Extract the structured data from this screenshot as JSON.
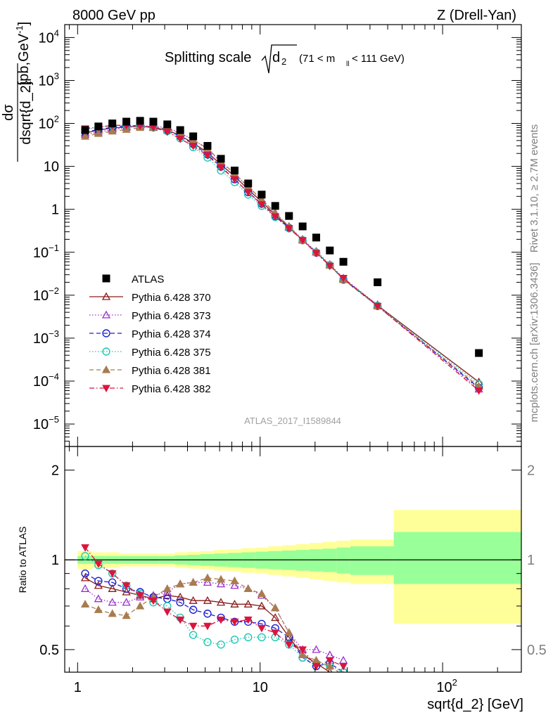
{
  "header": {
    "left": "8000 GeV pp",
    "right": "Z (Drell-Yan)"
  },
  "side_labels": {
    "rivet": "Rivet 3.1.10, ≥ 2.7M events",
    "mcplots": "mcplots.cern.ch [arXiv:1306.3436]"
  },
  "chart_data": [
    {
      "type": "scatter",
      "title_main": "Splitting scale",
      "title_sqrt": "d",
      "title_sqrt_sub": "2",
      "title_range_pre": "(71 < m",
      "title_range_sub": "ll",
      "title_range_post": " < 111 GeV)",
      "ylabel_num": "dσ",
      "ylabel_den": "dsqrt{d_2}",
      "ylabel_unit": "[pb,GeV",
      "ylabel_unit_sup": "-1",
      "ylabel_unit_end": "]",
      "watermark": "ATLAS_2017_I1589844",
      "x_scale": "log",
      "y_scale": "log",
      "xlim": [
        0.85,
        270
      ],
      "ylim": [
        3e-06,
        20000
      ],
      "x_ticks": [
        {
          "v": 1,
          "label": "1"
        },
        {
          "v": 10,
          "label": "10"
        },
        {
          "v": 100,
          "label": "10",
          "sup": "2"
        }
      ],
      "y_ticks": [
        {
          "v": 1e-05,
          "label": "10",
          "sup": "−5"
        },
        {
          "v": 0.0001,
          "label": "10",
          "sup": "−4"
        },
        {
          "v": 0.001,
          "label": "10",
          "sup": "−3"
        },
        {
          "v": 0.01,
          "label": "10",
          "sup": "−2"
        },
        {
          "v": 0.1,
          "label": "10",
          "sup": "−1"
        },
        {
          "v": 1,
          "label": "1"
        },
        {
          "v": 10,
          "label": "10"
        },
        {
          "v": 100,
          "label": "10",
          "sup": "2"
        },
        {
          "v": 1000,
          "label": "10",
          "sup": "3"
        },
        {
          "v": 10000,
          "label": "10",
          "sup": "4"
        }
      ],
      "legend_position": "lower-left",
      "series": [
        {
          "name": "ATLAS",
          "color": "#000000",
          "marker": "square-filled",
          "line": "none",
          "x": [
            1.1,
            1.3,
            1.55,
            1.85,
            2.2,
            2.6,
            3.1,
            3.65,
            4.3,
            5.15,
            6.1,
            7.25,
            8.6,
            10.2,
            12.1,
            14.4,
            17.1,
            20.3,
            24.1,
            28.6,
            44,
            158
          ],
          "y": [
            70,
            85,
            100,
            110,
            115,
            110,
            95,
            70,
            50,
            30,
            15,
            8,
            4,
            2.2,
            1.2,
            0.7,
            0.4,
            0.22,
            0.11,
            0.06,
            0.02,
            0.00045
          ]
        },
        {
          "name": "Pythia 6.428 370",
          "color": "#8b1a1a",
          "marker": "triangle-up-open",
          "line": "solid",
          "x": [
            1.1,
            1.3,
            1.55,
            1.85,
            2.2,
            2.6,
            3.1,
            3.65,
            4.3,
            5.15,
            6.1,
            7.25,
            8.6,
            10.2,
            12.1,
            14.4,
            17.1,
            20.3,
            24.1,
            28.6,
            44,
            158
          ],
          "y": [
            60,
            70,
            78,
            82,
            86,
            80,
            70,
            52,
            35,
            21,
            11,
            5.9,
            2.9,
            1.5,
            0.75,
            0.38,
            0.19,
            0.1,
            0.05,
            0.024,
            0.0058,
            9.5e-05
          ]
        },
        {
          "name": "Pythia 6.428 373",
          "color": "#9932cc",
          "marker": "triangle-up-open",
          "line": "dotted",
          "x": [
            1.1,
            1.3,
            1.55,
            1.85,
            2.2,
            2.6,
            3.1,
            3.65,
            4.3,
            5.15,
            6.1,
            7.25,
            8.6,
            10.2,
            12.1,
            14.4,
            17.1,
            20.3,
            24.1,
            28.6,
            44,
            158
          ],
          "y": [
            55,
            63,
            72,
            80,
            88,
            86,
            80,
            60,
            42,
            25,
            12.5,
            6.7,
            3.3,
            1.7,
            0.83,
            0.4,
            0.2,
            0.105,
            0.052,
            0.025,
            0.006,
            6.5e-05
          ]
        },
        {
          "name": "Pythia 6.428 374",
          "color": "#1e1ed2",
          "marker": "circle-open",
          "line": "dashed",
          "x": [
            1.1,
            1.3,
            1.55,
            1.85,
            2.2,
            2.6,
            3.1,
            3.65,
            4.3,
            5.15,
            6.1,
            7.25,
            8.6,
            10.2,
            12.1,
            14.4,
            17.1,
            20.3,
            24.1,
            28.6,
            44,
            158
          ],
          "y": [
            63,
            72,
            82,
            87,
            90,
            82,
            70,
            50,
            33,
            19,
            9.8,
            5,
            2.5,
            1.35,
            0.7,
            0.37,
            0.19,
            0.098,
            0.05,
            0.023,
            0.0056,
            7e-05
          ]
        },
        {
          "name": "Pythia 6.428 375",
          "color": "#1ec8b4",
          "marker": "circle-open",
          "line": "dotted",
          "x": [
            1.1,
            1.3,
            1.55,
            1.85,
            2.2,
            2.6,
            3.1,
            3.65,
            4.3,
            5.15,
            6.1,
            7.25,
            8.6,
            10.2,
            12.1,
            14.4,
            17.1,
            20.3,
            24.1,
            28.6,
            44,
            158
          ],
          "y": [
            72,
            82,
            90,
            90,
            88,
            80,
            66,
            45,
            28,
            16,
            8,
            4.3,
            2.2,
            1.2,
            0.66,
            0.36,
            0.19,
            0.1,
            0.05,
            0.024,
            0.0057,
            8.5e-05
          ]
        },
        {
          "name": "Pythia 6.428 381",
          "color": "#a87c4f",
          "marker": "triangle-up-filled",
          "line": "dashed",
          "x": [
            1.1,
            1.3,
            1.55,
            1.85,
            2.2,
            2.6,
            3.1,
            3.65,
            4.3,
            5.15,
            6.1,
            7.25,
            8.6,
            10.2,
            12.1,
            14.4,
            17.1,
            20.3,
            24.1,
            28.6,
            44,
            158
          ],
          "y": [
            50,
            58,
            66,
            72,
            80,
            82,
            76,
            58,
            42,
            26,
            13,
            6.8,
            3.4,
            1.7,
            0.82,
            0.4,
            0.19,
            0.1,
            0.05,
            0.023,
            0.0056,
            7.5e-05
          ]
        },
        {
          "name": "Pythia 6.428 382",
          "color": "#dc143c",
          "marker": "triangle-down-filled",
          "line": "dashdot",
          "x": [
            1.1,
            1.3,
            1.55,
            1.85,
            2.2,
            2.6,
            3.1,
            3.65,
            4.3,
            5.15,
            6.1,
            7.25,
            8.6,
            10.2,
            12.1,
            14.4,
            17.1,
            20.3,
            24.1,
            28.6,
            44,
            158
          ],
          "y": [
            76,
            82,
            90,
            90,
            88,
            80,
            64,
            44,
            30,
            18,
            9.5,
            5,
            2.5,
            1.3,
            0.68,
            0.36,
            0.19,
            0.095,
            0.048,
            0.025,
            0.0056,
            6e-05
          ]
        }
      ]
    },
    {
      "type": "line",
      "ylabel": "Ratio to ATLAS",
      "xlabel": "sqrt{d_2} [GeV]",
      "x_scale": "log",
      "y_scale": "log",
      "xlim": [
        0.85,
        270
      ],
      "ylim": [
        0.42,
        2.4
      ],
      "y_ticks": [
        {
          "v": 0.5,
          "label": "0.5"
        },
        {
          "v": 1,
          "label": "1"
        },
        {
          "v": 2,
          "label": "2"
        }
      ],
      "reference_line": 1,
      "band_bins": [
        {
          "x0": 1,
          "x1": 1.2,
          "inner": [
            0.97,
            1.03
          ],
          "outer": [
            0.93,
            1.07
          ]
        },
        {
          "x0": 1.2,
          "x1": 1.4,
          "inner": [
            0.97,
            1.03
          ],
          "outer": [
            0.94,
            1.06
          ]
        },
        {
          "x0": 1.4,
          "x1": 1.7,
          "inner": [
            0.97,
            1.03
          ],
          "outer": [
            0.94,
            1.06
          ]
        },
        {
          "x0": 1.7,
          "x1": 2,
          "inner": [
            0.97,
            1.03
          ],
          "outer": [
            0.95,
            1.05
          ]
        },
        {
          "x0": 2,
          "x1": 2.4,
          "inner": [
            0.97,
            1.03
          ],
          "outer": [
            0.95,
            1.05
          ]
        },
        {
          "x0": 2.4,
          "x1": 2.8,
          "inner": [
            0.97,
            1.03
          ],
          "outer": [
            0.95,
            1.05
          ]
        },
        {
          "x0": 2.8,
          "x1": 3.4,
          "inner": [
            0.97,
            1.03
          ],
          "outer": [
            0.95,
            1.05
          ]
        },
        {
          "x0": 3.4,
          "x1": 4,
          "inner": [
            0.965,
            1.035
          ],
          "outer": [
            0.94,
            1.06
          ]
        },
        {
          "x0": 4,
          "x1": 4.7,
          "inner": [
            0.96,
            1.04
          ],
          "outer": [
            0.935,
            1.065
          ]
        },
        {
          "x0": 4.7,
          "x1": 5.6,
          "inner": [
            0.955,
            1.045
          ],
          "outer": [
            0.93,
            1.07
          ]
        },
        {
          "x0": 5.6,
          "x1": 6.7,
          "inner": [
            0.95,
            1.05
          ],
          "outer": [
            0.92,
            1.08
          ]
        },
        {
          "x0": 6.7,
          "x1": 7.9,
          "inner": [
            0.945,
            1.055
          ],
          "outer": [
            0.915,
            1.085
          ]
        },
        {
          "x0": 7.9,
          "x1": 9.4,
          "inner": [
            0.94,
            1.06
          ],
          "outer": [
            0.905,
            1.095
          ]
        },
        {
          "x0": 9.4,
          "x1": 11.1,
          "inner": [
            0.935,
            1.065
          ],
          "outer": [
            0.9,
            1.1
          ]
        },
        {
          "x0": 11.1,
          "x1": 13.2,
          "inner": [
            0.93,
            1.07
          ],
          "outer": [
            0.89,
            1.11
          ]
        },
        {
          "x0": 13.2,
          "x1": 15.7,
          "inner": [
            0.925,
            1.075
          ],
          "outer": [
            0.88,
            1.12
          ]
        },
        {
          "x0": 15.7,
          "x1": 18.6,
          "inner": [
            0.92,
            1.08
          ],
          "outer": [
            0.87,
            1.13
          ]
        },
        {
          "x0": 18.6,
          "x1": 22.1,
          "inner": [
            0.915,
            1.085
          ],
          "outer": [
            0.86,
            1.14
          ]
        },
        {
          "x0": 22.1,
          "x1": 26.3,
          "inner": [
            0.91,
            1.09
          ],
          "outer": [
            0.85,
            1.15
          ]
        },
        {
          "x0": 26.3,
          "x1": 31.2,
          "inner": [
            0.9,
            1.1
          ],
          "outer": [
            0.84,
            1.16
          ]
        },
        {
          "x0": 31.2,
          "x1": 54,
          "inner": [
            0.89,
            1.11
          ],
          "outer": [
            0.83,
            1.17
          ]
        },
        {
          "x0": 54,
          "x1": 270,
          "inner": [
            0.83,
            1.24
          ],
          "outer": [
            0.61,
            1.47
          ]
        }
      ],
      "series": [
        {
          "name": "Pythia 6.428 370",
          "x": [
            1.1,
            1.3,
            1.55,
            1.85,
            2.2,
            2.6,
            3.1,
            3.65,
            4.3,
            5.15,
            6.1,
            7.25,
            8.6,
            10.2,
            12.1,
            14.4,
            17.1,
            20.3,
            24.1,
            28.6
          ],
          "y": [
            0.87,
            0.82,
            0.8,
            0.78,
            0.76,
            0.74,
            0.76,
            0.75,
            0.73,
            0.73,
            0.72,
            0.71,
            0.71,
            0.7,
            0.64,
            0.55,
            0.48,
            0.45,
            0.42,
            0.4
          ]
        },
        {
          "name": "Pythia 6.428 373",
          "x": [
            1.1,
            1.3,
            1.55,
            1.85,
            2.2,
            2.6,
            3.1,
            3.65,
            4.3,
            5.15,
            6.1,
            7.25,
            8.6,
            10.2,
            12.1,
            14.4,
            17.1,
            20.3,
            24.1,
            28.6
          ],
          "y": [
            0.8,
            0.74,
            0.72,
            0.72,
            0.75,
            0.76,
            0.78,
            0.83,
            0.84,
            0.84,
            0.83,
            0.82,
            0.8,
            0.76,
            0.69,
            0.57,
            0.5,
            0.5,
            0.48,
            0.46
          ]
        },
        {
          "name": "Pythia 6.428 374",
          "x": [
            1.1,
            1.3,
            1.55,
            1.85,
            2.2,
            2.6,
            3.1,
            3.65,
            4.3,
            5.15,
            6.1,
            7.25,
            8.6,
            10.2,
            12.1,
            14.4,
            17.1,
            20.3,
            24.1,
            28.6
          ],
          "y": [
            0.9,
            0.85,
            0.84,
            0.8,
            0.78,
            0.75,
            0.74,
            0.72,
            0.68,
            0.66,
            0.64,
            0.62,
            0.62,
            0.61,
            0.59,
            0.55,
            0.47,
            0.44,
            0.45,
            0.42
          ]
        },
        {
          "name": "Pythia 6.428 375",
          "x": [
            1.1,
            1.3,
            1.55,
            1.85,
            2.2,
            2.6,
            3.1,
            3.65,
            4.3,
            5.15,
            6.1,
            7.25,
            8.6,
            10.2,
            12.1,
            14.4,
            17.1,
            20.3,
            24.1,
            28.6
          ],
          "y": [
            1.03,
            0.96,
            0.9,
            0.82,
            0.77,
            0.72,
            0.7,
            0.64,
            0.56,
            0.53,
            0.52,
            0.54,
            0.55,
            0.55,
            0.55,
            0.52,
            0.47,
            0.45,
            0.44,
            0.42
          ]
        },
        {
          "name": "Pythia 6.428 381",
          "x": [
            1.1,
            1.3,
            1.55,
            1.85,
            2.2,
            2.6,
            3.1,
            3.65,
            4.3,
            5.15,
            6.1,
            7.25,
            8.6,
            10.2,
            12.1,
            14.4,
            17.1,
            20.3,
            24.1,
            28.6
          ],
          "y": [
            0.71,
            0.68,
            0.66,
            0.65,
            0.7,
            0.75,
            0.8,
            0.83,
            0.84,
            0.87,
            0.86,
            0.85,
            0.8,
            0.77,
            0.69,
            0.57,
            0.48,
            0.46,
            0.44,
            0.41
          ]
        },
        {
          "name": "Pythia 6.428 382",
          "x": [
            1.1,
            1.3,
            1.55,
            1.85,
            2.2,
            2.6,
            3.1,
            3.65,
            4.3,
            5.15,
            6.1,
            7.25,
            8.6,
            10.2,
            12.1,
            14.4,
            17.1,
            20.3,
            24.1,
            28.6
          ],
          "y": [
            1.1,
            0.97,
            0.9,
            0.82,
            0.76,
            0.73,
            0.67,
            0.63,
            0.6,
            0.6,
            0.63,
            0.62,
            0.63,
            0.59,
            0.57,
            0.52,
            0.5,
            0.44,
            0.46,
            0.44
          ]
        }
      ]
    }
  ]
}
